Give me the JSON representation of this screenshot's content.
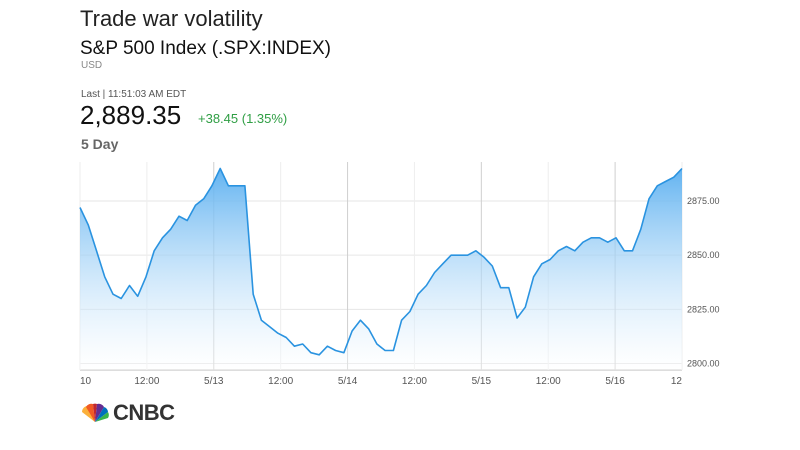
{
  "header": {
    "title": "Trade war volatility",
    "index_name": "S&P 500 Index (.SPX:INDEX)",
    "currency": "USD",
    "last_label": "Last | 11:51:03 AM EDT",
    "price": "2,889.35",
    "change": "+38.45 (1.35%)",
    "range": "5 Day"
  },
  "colors": {
    "line": "#2a93e0",
    "fill_top": "#5aaff0",
    "fill_bottom": "#ffffff",
    "change_up": "#2f9e44"
  },
  "footer": {
    "logo_text": "CNBC"
  },
  "chart_data": {
    "type": "area",
    "title": "",
    "xlabel": "",
    "ylabel": "",
    "ylim": [
      2797,
      2893
    ],
    "yticks": [
      "2800.00",
      "2825.00",
      "2850.00",
      "2875.00"
    ],
    "xticks": [
      "10",
      "12:00",
      "5/13",
      "12:00",
      "5/14",
      "12:00",
      "5/15",
      "12:00",
      "5/16",
      "12"
    ],
    "grid": true,
    "series": [
      {
        "values": [
          2872,
          2864,
          2852,
          2840,
          2832,
          2830,
          2836,
          2831,
          2840,
          2852,
          2858,
          2862,
          2868,
          2866,
          2873,
          2876,
          2882,
          2890,
          2882,
          2882,
          2882,
          2832,
          2820,
          2817,
          2814,
          2812,
          2808,
          2809,
          2805,
          2804,
          2808,
          2806,
          2805,
          2815,
          2820,
          2816,
          2809,
          2806,
          2806,
          2820,
          2824,
          2832,
          2836,
          2842,
          2846,
          2850,
          2850,
          2850,
          2852,
          2849,
          2845,
          2835,
          2835,
          2821,
          2826,
          2840,
          2846,
          2848,
          2852,
          2854,
          2852,
          2856,
          2858,
          2858,
          2856,
          2858,
          2852,
          2852,
          2862,
          2876,
          2882,
          2884,
          2886,
          2890
        ]
      }
    ]
  }
}
